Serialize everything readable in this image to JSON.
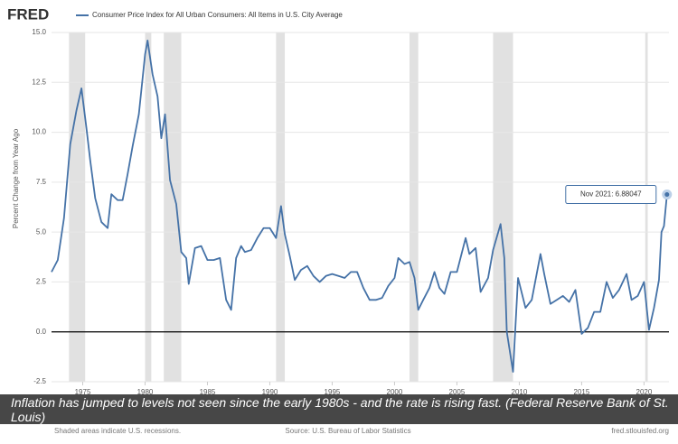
{
  "chart_data": {
    "type": "line",
    "logo": "FRED",
    "y_label": "Percent Change from Year Ago",
    "source": "Source: U.S. Bureau of Labor Statistics",
    "site": "fred.stlouisfed.org",
    "note": "Shaded areas indicate U.S. recessions.",
    "caption": "Inflation has jumped to levels not seen since the early 1980s - and the rate is rising fast. (Federal Reserve Bank of St. Louis)",
    "annotation": "Nov 2021: 6.88047",
    "xlim": [
      1972.5,
      2022
    ],
    "xticks": [
      1975,
      1980,
      1985,
      1990,
      1995,
      2000,
      2005,
      2010,
      2015,
      2020
    ],
    "ylim": [
      -2.5,
      15
    ],
    "yticks": [
      {
        "value": -2.5,
        "label": "-2.5"
      },
      {
        "value": 0,
        "label": "0.0"
      },
      {
        "value": 2.5,
        "label": "2.5"
      },
      {
        "value": 5,
        "label": "5.0"
      },
      {
        "value": 7.5,
        "label": "7.5"
      },
      {
        "value": 10,
        "label": "10.0"
      },
      {
        "value": 12.5,
        "label": "12.5"
      },
      {
        "value": 15,
        "label": "15.0"
      }
    ],
    "grid": true,
    "recessions": [
      [
        1973.9,
        1975.2
      ],
      [
        1980.0,
        1980.5
      ],
      [
        1981.5,
        1982.9
      ],
      [
        1990.5,
        1991.2
      ],
      [
        2001.2,
        2001.9
      ],
      [
        2007.9,
        2009.5
      ],
      [
        2020.1,
        2020.3
      ]
    ],
    "recession_color": "#e1e1e1",
    "x": [
      1972.5,
      1973.0,
      1973.5,
      1974.0,
      1974.5,
      1974.9,
      1975.3,
      1975.6,
      1976.0,
      1976.5,
      1977.0,
      1977.3,
      1977.8,
      1978.2,
      1978.6,
      1979.0,
      1979.5,
      1980.0,
      1980.2,
      1980.6,
      1981.0,
      1981.3,
      1981.6,
      1982.0,
      1982.5,
      1982.9,
      1983.3,
      1983.5,
      1984.0,
      1984.5,
      1985.0,
      1985.5,
      1986.0,
      1986.5,
      1986.9,
      1987.3,
      1987.7,
      1988.0,
      1988.5,
      1989.0,
      1989.5,
      1990.0,
      1990.5,
      1990.9,
      1991.2,
      1991.6,
      1992.0,
      1992.5,
      1993.0,
      1993.5,
      1994.0,
      1994.5,
      1995.0,
      1995.5,
      1996.0,
      1996.5,
      1997.0,
      1997.5,
      1998.0,
      1998.5,
      1999.0,
      1999.5,
      2000.0,
      2000.3,
      2000.8,
      2001.2,
      2001.6,
      2001.9,
      2002.3,
      2002.8,
      2003.2,
      2003.6,
      2004.0,
      2004.5,
      2005.0,
      2005.7,
      2006.0,
      2006.5,
      2006.9,
      2007.5,
      2007.9,
      2008.5,
      2008.8,
      2009.0,
      2009.5,
      2009.9,
      2010.5,
      2011.0,
      2011.7,
      2012.0,
      2012.5,
      2013.0,
      2013.5,
      2014.0,
      2014.5,
      2015.0,
      2015.5,
      2016.0,
      2016.5,
      2017.0,
      2017.5,
      2018.0,
      2018.6,
      2019.0,
      2019.5,
      2020.0,
      2020.4,
      2020.8,
      2021.2,
      2021.4,
      2021.6,
      2021.84
    ],
    "series": [
      {
        "name": "Consumer Price Index for All Urban Consumers: All Items in U.S. City Average",
        "color": "#4572a7",
        "values": [
          3.0,
          3.6,
          5.7,
          9.4,
          11.1,
          12.2,
          10.2,
          8.6,
          6.7,
          5.5,
          5.2,
          6.9,
          6.6,
          6.6,
          7.9,
          9.3,
          10.9,
          13.9,
          14.6,
          12.9,
          11.8,
          9.7,
          10.9,
          7.6,
          6.4,
          4.0,
          3.7,
          2.4,
          4.2,
          4.3,
          3.6,
          3.6,
          3.7,
          1.6,
          1.1,
          3.7,
          4.3,
          4.0,
          4.1,
          4.7,
          5.2,
          5.2,
          4.7,
          6.3,
          4.9,
          3.8,
          2.6,
          3.1,
          3.3,
          2.8,
          2.5,
          2.8,
          2.9,
          2.8,
          2.7,
          3.0,
          3.0,
          2.2,
          1.6,
          1.6,
          1.7,
          2.3,
          2.7,
          3.7,
          3.4,
          3.5,
          2.7,
          1.1,
          1.6,
          2.2,
          3.0,
          2.2,
          1.9,
          3.0,
          3.0,
          4.7,
          3.9,
          4.2,
          2.0,
          2.7,
          4.1,
          5.4,
          3.7,
          0.0,
          -2.0,
          2.7,
          1.2,
          1.6,
          3.9,
          2.9,
          1.4,
          1.6,
          1.8,
          1.5,
          2.1,
          -0.1,
          0.2,
          1.0,
          1.0,
          2.5,
          1.7,
          2.1,
          2.9,
          1.6,
          1.8,
          2.5,
          0.1,
          1.2,
          2.6,
          5.0,
          5.3,
          6.88047
        ]
      }
    ]
  }
}
